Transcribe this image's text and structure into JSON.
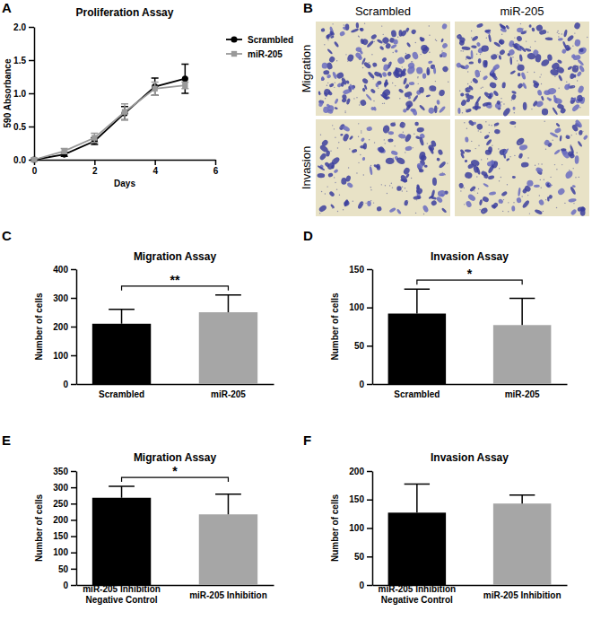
{
  "chart_data": [
    {
      "type": "line",
      "title": "Proliferation Assay",
      "x_label": "Days",
      "y_label": "590 Absorbance",
      "annotations": [
        "A"
      ],
      "x": [
        0,
        1,
        2,
        3,
        4,
        5
      ],
      "xlim": [
        0,
        6
      ],
      "xticks": [
        0,
        2,
        4,
        6
      ],
      "ylim": [
        0,
        2.0
      ],
      "yticks": [
        {
          "value": 0,
          "label": "0.0"
        },
        {
          "value": 0.5,
          "label": "0.5"
        },
        {
          "value": 1.0,
          "label": "1.0"
        },
        {
          "value": 1.5,
          "label": "1.5"
        },
        {
          "value": 2.0,
          "label": "2.0"
        }
      ],
      "legend": "right",
      "series": [
        {
          "name": "Scrambled",
          "color": "#000000",
          "marker": "circle",
          "values": [
            0,
            0.08,
            0.28,
            0.7,
            1.1,
            1.22
          ],
          "errors": [
            0.02,
            0.03,
            0.05,
            0.1,
            0.13,
            0.22
          ]
        },
        {
          "name": "miR-205",
          "color": "#999999",
          "marker": "square",
          "values": [
            0,
            0.13,
            0.33,
            0.72,
            1.07,
            1.12
          ],
          "errors": [
            0.02,
            0.04,
            0.07,
            0.12,
            0.1,
            0.05
          ]
        }
      ]
    },
    {
      "type": "bar",
      "title": "Migration Assay",
      "y_label": "Number of cells",
      "annotations": [
        "C",
        "**"
      ],
      "categories": [
        "Scrambled",
        "miR-205"
      ],
      "values": [
        210,
        250
      ],
      "errors": [
        50,
        60
      ],
      "colors": [
        "#000000",
        "#a6a6a6"
      ],
      "ylim": [
        0,
        400
      ],
      "yticks": [
        0,
        100,
        200,
        300,
        400
      ]
    },
    {
      "type": "bar",
      "title": "Invasion Assay",
      "y_label": "Number of cells",
      "annotations": [
        "D",
        "*"
      ],
      "categories": [
        "Scrambled",
        "miR-205"
      ],
      "values": [
        92,
        77
      ],
      "errors": [
        32,
        35
      ],
      "colors": [
        "#000000",
        "#a6a6a6"
      ],
      "ylim": [
        0,
        150
      ],
      "yticks": [
        0,
        50,
        100,
        150
      ]
    },
    {
      "type": "bar",
      "title": "Migration Assay",
      "y_label": "Number of cells",
      "annotations": [
        "E",
        "*"
      ],
      "categories": [
        "miR-205 Inhibition\nNegative Control",
        "miR-205 Inhibition"
      ],
      "values": [
        268,
        217
      ],
      "errors": [
        35,
        62
      ],
      "colors": [
        "#000000",
        "#a6a6a6"
      ],
      "ylim": [
        0,
        350
      ],
      "yticks": [
        0,
        50,
        100,
        150,
        200,
        250,
        300,
        350
      ]
    },
    {
      "type": "bar",
      "title": "Invasion Assay",
      "y_label": "Number of cells",
      "annotations": [
        "F"
      ],
      "categories": [
        "miR-205 Inhibition\nNegative Control",
        "miR-205 Inhibition"
      ],
      "values": [
        127,
        143
      ],
      "errors": [
        50,
        15
      ],
      "colors": [
        "#000000",
        "#a6a6a6"
      ],
      "ylim": [
        0,
        200
      ],
      "yticks": [
        0,
        50,
        100,
        150,
        200
      ]
    }
  ],
  "image_panel": {
    "annotation": "B",
    "columns": [
      "Scrambled",
      "miR-205"
    ],
    "rows": [
      "Migration",
      "Invasion"
    ]
  }
}
